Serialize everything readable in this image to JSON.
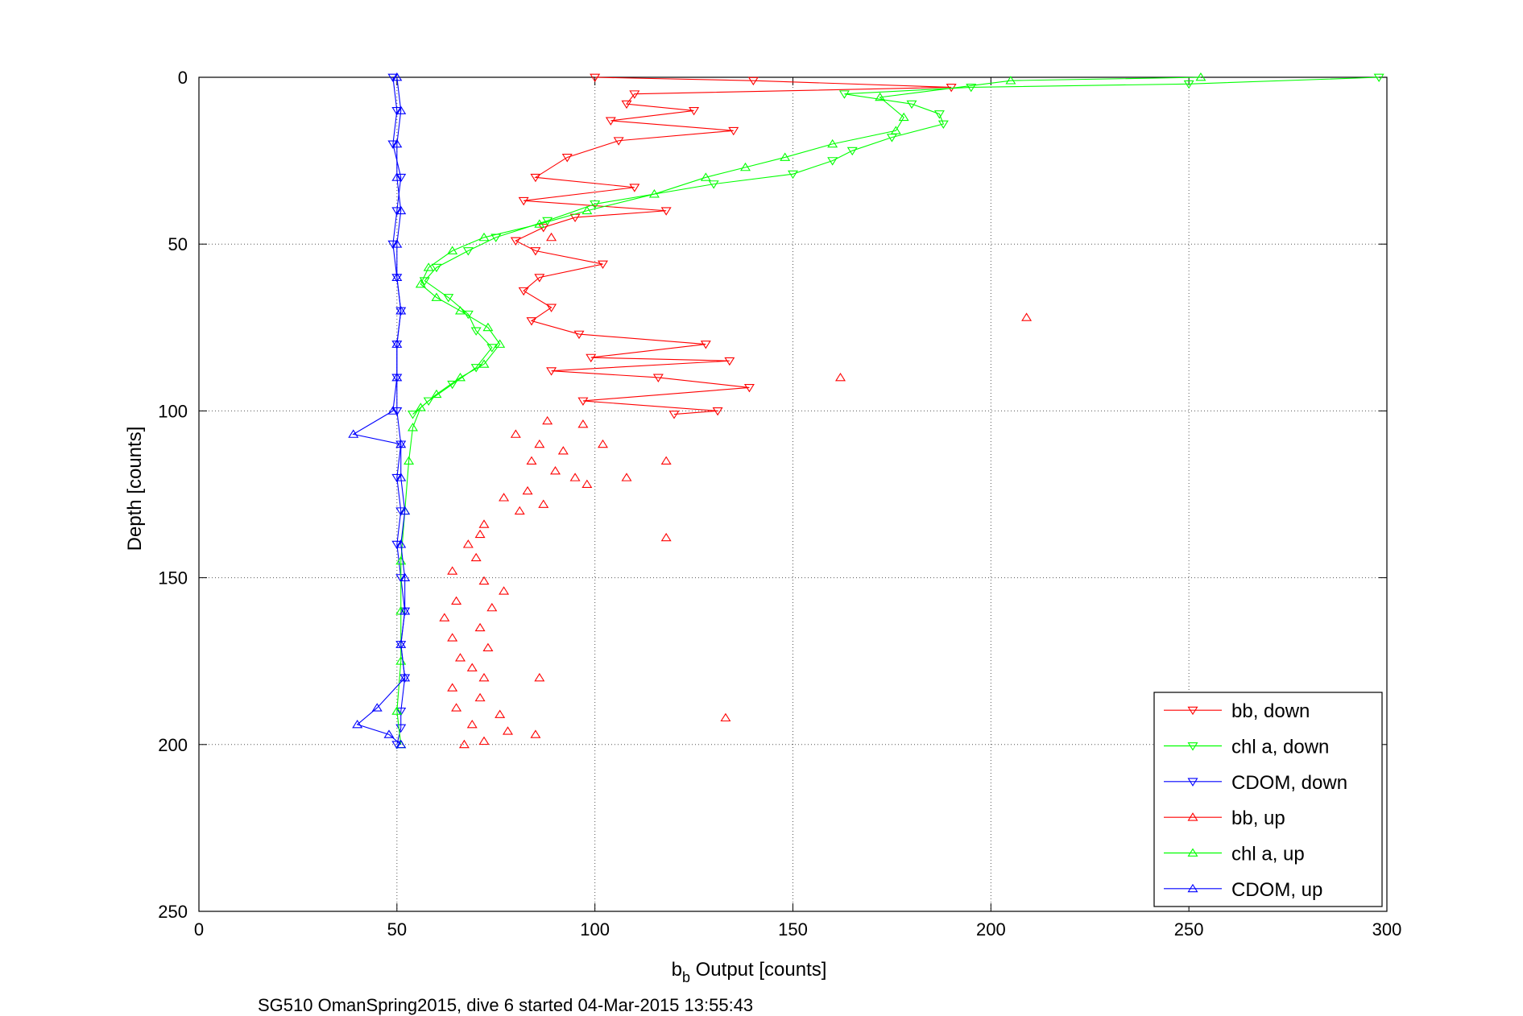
{
  "chart_data": {
    "type": "line",
    "xlabel_main": "b",
    "xlabel_sub": "b",
    "xlabel_rest": " Output [counts]",
    "ylabel": "Depth [counts]",
    "caption": "SG510 OmanSpring2015, dive 6 started 04-Mar-2015 13:55:43",
    "xlim": [
      0,
      300
    ],
    "ylim": [
      0,
      250
    ],
    "y_reversed": true,
    "grid": true,
    "xticks": [
      "0",
      "50",
      "100",
      "150",
      "200",
      "250",
      "300"
    ],
    "yticks": [
      "0",
      "50",
      "100",
      "150",
      "200",
      "250"
    ],
    "legend_position": "bottom-right",
    "series": [
      {
        "name": "bb, down",
        "color": "#ff0000",
        "marker": "triangle-down",
        "lines": true,
        "points": [
          [
            100,
            0
          ],
          [
            140,
            1
          ],
          [
            190,
            3
          ],
          [
            110,
            5
          ],
          [
            108,
            8
          ],
          [
            125,
            10
          ],
          [
            104,
            13
          ],
          [
            135,
            16
          ],
          [
            106,
            19
          ],
          [
            93,
            24
          ],
          [
            85,
            30
          ],
          [
            110,
            33
          ],
          [
            82,
            37
          ],
          [
            118,
            40
          ],
          [
            95,
            42
          ],
          [
            87,
            45
          ],
          [
            80,
            49
          ],
          [
            85,
            52
          ],
          [
            102,
            56
          ],
          [
            86,
            60
          ],
          [
            82,
            64
          ],
          [
            89,
            69
          ],
          [
            84,
            73
          ],
          [
            96,
            77
          ],
          [
            128,
            80
          ],
          [
            99,
            84
          ],
          [
            134,
            85
          ],
          [
            89,
            88
          ],
          [
            116,
            90
          ],
          [
            139,
            93
          ],
          [
            97,
            97
          ],
          [
            131,
            100
          ],
          [
            120,
            101
          ]
        ]
      },
      {
        "name": "chl a, down",
        "color": "#00ff00",
        "marker": "triangle-down",
        "lines": true,
        "points": [
          [
            298,
            0
          ],
          [
            250,
            2
          ],
          [
            195,
            3
          ],
          [
            163,
            5
          ],
          [
            180,
            8
          ],
          [
            187,
            11
          ],
          [
            188,
            14
          ],
          [
            175,
            18
          ],
          [
            165,
            22
          ],
          [
            160,
            25
          ],
          [
            150,
            29
          ],
          [
            130,
            32
          ],
          [
            100,
            38
          ],
          [
            88,
            43
          ],
          [
            75,
            48
          ],
          [
            68,
            52
          ],
          [
            60,
            57
          ],
          [
            57,
            61
          ],
          [
            63,
            66
          ],
          [
            68,
            71
          ],
          [
            70,
            76
          ],
          [
            74,
            81
          ],
          [
            70,
            87
          ],
          [
            64,
            92
          ],
          [
            58,
            97
          ],
          [
            54,
            101
          ]
        ]
      },
      {
        "name": "CDOM, down",
        "color": "#0000ff",
        "marker": "triangle-down",
        "lines": true,
        "points": [
          [
            49,
            0
          ],
          [
            50,
            10
          ],
          [
            49,
            20
          ],
          [
            51,
            30
          ],
          [
            50,
            40
          ],
          [
            49,
            50
          ],
          [
            50,
            60
          ],
          [
            51,
            70
          ],
          [
            50,
            80
          ],
          [
            50,
            90
          ],
          [
            50,
            100
          ],
          [
            51,
            110
          ],
          [
            50,
            120
          ],
          [
            51,
            130
          ],
          [
            50,
            140
          ],
          [
            51,
            150
          ],
          [
            52,
            160
          ],
          [
            51,
            170
          ],
          [
            52,
            180
          ],
          [
            51,
            190
          ],
          [
            51,
            195
          ],
          [
            50,
            200
          ]
        ]
      },
      {
        "name": "bb, up",
        "color": "#ff0000",
        "marker": "triangle-up",
        "lines": false,
        "points": [
          [
            88,
            103
          ],
          [
            97,
            104
          ],
          [
            80,
            107
          ],
          [
            86,
            110
          ],
          [
            92,
            112
          ],
          [
            84,
            115
          ],
          [
            90,
            118
          ],
          [
            95,
            120
          ],
          [
            98,
            122
          ],
          [
            83,
            124
          ],
          [
            77,
            126
          ],
          [
            87,
            128
          ],
          [
            81,
            130
          ],
          [
            72,
            134
          ],
          [
            71,
            137
          ],
          [
            68,
            140
          ],
          [
            70,
            144
          ],
          [
            64,
            148
          ],
          [
            72,
            151
          ],
          [
            77,
            154
          ],
          [
            65,
            157
          ],
          [
            74,
            159
          ],
          [
            62,
            162
          ],
          [
            71,
            165
          ],
          [
            64,
            168
          ],
          [
            73,
            171
          ],
          [
            66,
            174
          ],
          [
            69,
            177
          ],
          [
            72,
            180
          ],
          [
            64,
            183
          ],
          [
            71,
            186
          ],
          [
            65,
            189
          ],
          [
            76,
            191
          ],
          [
            69,
            194
          ],
          [
            78,
            196
          ],
          [
            85,
            197
          ],
          [
            72,
            199
          ],
          [
            67,
            200
          ],
          [
            133,
            192
          ],
          [
            118,
            138
          ],
          [
            118,
            115
          ],
          [
            108,
            120
          ],
          [
            102,
            110
          ],
          [
            86,
            180
          ],
          [
            209,
            72
          ],
          [
            162,
            90
          ],
          [
            89,
            48
          ]
        ]
      },
      {
        "name": "chl a, up",
        "color": "#00ff00",
        "marker": "triangle-up",
        "lines": true,
        "points": [
          [
            253,
            0
          ],
          [
            205,
            1
          ],
          [
            172,
            6
          ],
          [
            178,
            12
          ],
          [
            176,
            16
          ],
          [
            160,
            20
          ],
          [
            148,
            24
          ],
          [
            138,
            27
          ],
          [
            128,
            30
          ],
          [
            115,
            35
          ],
          [
            98,
            40
          ],
          [
            86,
            44
          ],
          [
            72,
            48
          ],
          [
            64,
            52
          ],
          [
            58,
            57
          ],
          [
            56,
            62
          ],
          [
            60,
            66
          ],
          [
            66,
            70
          ],
          [
            73,
            75
          ],
          [
            76,
            80
          ],
          [
            72,
            86
          ],
          [
            66,
            90
          ],
          [
            60,
            95
          ],
          [
            56,
            99
          ],
          [
            54,
            105
          ],
          [
            53,
            115
          ],
          [
            52,
            130
          ],
          [
            51,
            145
          ],
          [
            51,
            160
          ],
          [
            51,
            175
          ],
          [
            50,
            190
          ],
          [
            51,
            200
          ]
        ]
      },
      {
        "name": "CDOM, up",
        "color": "#0000ff",
        "marker": "triangle-up",
        "lines": true,
        "points": [
          [
            50,
            0
          ],
          [
            51,
            10
          ],
          [
            50,
            20
          ],
          [
            50,
            30
          ],
          [
            51,
            40
          ],
          [
            50,
            50
          ],
          [
            50,
            60
          ],
          [
            51,
            70
          ],
          [
            50,
            80
          ],
          [
            50,
            90
          ],
          [
            49,
            100
          ],
          [
            39,
            107
          ],
          [
            51,
            110
          ],
          [
            51,
            120
          ],
          [
            52,
            130
          ],
          [
            51,
            140
          ],
          [
            52,
            150
          ],
          [
            52,
            160
          ],
          [
            51,
            170
          ],
          [
            52,
            180
          ],
          [
            45,
            189
          ],
          [
            40,
            194
          ],
          [
            48,
            197
          ],
          [
            51,
            200
          ]
        ]
      }
    ]
  }
}
